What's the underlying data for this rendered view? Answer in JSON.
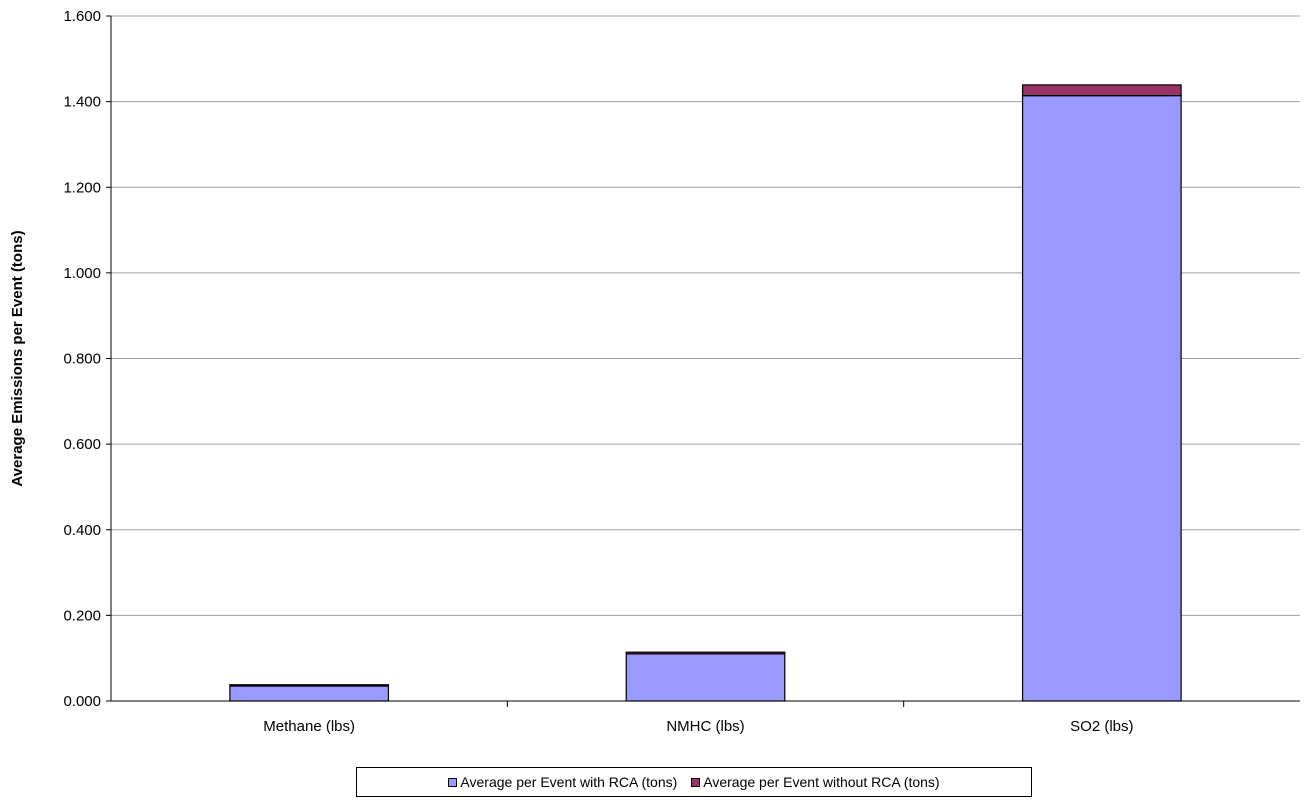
{
  "chart_data": {
    "type": "bar",
    "stacked": true,
    "categories": [
      "Methane (lbs)",
      "NMHC (lbs)",
      "SO2 (lbs)"
    ],
    "series": [
      {
        "name": "Average per Event with RCA (tons)",
        "color": "#9999ff",
        "values": [
          0.035,
          0.11,
          1.414
        ]
      },
      {
        "name": "Average per Event without RCA (tons)",
        "color": "#993366",
        "values": [
          0.003,
          0.004,
          0.025
        ]
      }
    ],
    "ylabel": "Average Emissions per Event (tons)",
    "xlabel": "",
    "title": "",
    "ylim": [
      0,
      1.6
    ],
    "yticks": [
      "0.000",
      "0.200",
      "0.400",
      "0.600",
      "0.800",
      "1.000",
      "1.200",
      "1.400",
      "1.600"
    ],
    "ytick_values": [
      0,
      0.2,
      0.4,
      0.6,
      0.8,
      1.0,
      1.2,
      1.4,
      1.6
    ],
    "grid": true,
    "legend_position": "bottom"
  }
}
